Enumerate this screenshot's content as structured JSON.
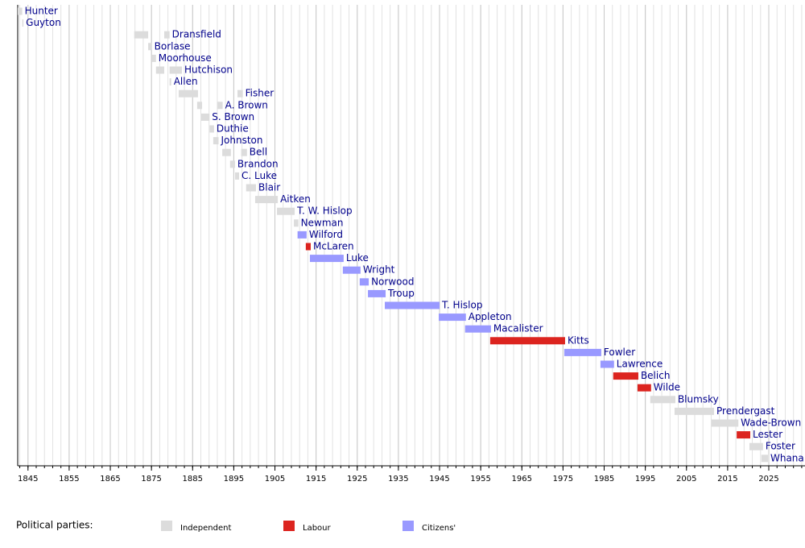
{
  "chart_data": {
    "type": "timeline",
    "xlim": [
      1842.5,
      2033.8
    ],
    "xticks": [
      1845,
      1855,
      1865,
      1875,
      1885,
      1895,
      1905,
      1915,
      1925,
      1935,
      1945,
      1955,
      1965,
      1975,
      1985,
      1995,
      2005,
      2015,
      2025
    ],
    "minor_xticks": [
      1843,
      1845,
      1847,
      1849,
      1851,
      1853,
      1855,
      1857,
      1859,
      1861,
      1863,
      1865,
      1867,
      1869,
      1871,
      1873,
      1875,
      1877,
      1879,
      1881,
      1883,
      1885,
      1887,
      1889,
      1891,
      1893,
      1895,
      1897,
      1899,
      1901,
      1903,
      1905,
      1907,
      1909,
      1911,
      1913,
      1915,
      1917,
      1919,
      1921,
      1923,
      1925,
      1927,
      1929,
      1931,
      1933,
      1935,
      1937,
      1939,
      1941,
      1943,
      1945,
      1947,
      1949,
      1951,
      1953,
      1955,
      1957,
      1959,
      1961,
      1963,
      1965,
      1967,
      1969,
      1971,
      1973,
      1975,
      1977,
      1979,
      1981,
      1983,
      1985,
      1987,
      1989,
      1991,
      1993,
      1995,
      1997,
      1999,
      2001,
      2003,
      2005,
      2007,
      2009,
      2011,
      2013,
      2015,
      2017,
      2019,
      2021,
      2023,
      2025,
      2027,
      2029,
      2031,
      2033
    ],
    "grid": true,
    "legend_title": "Political parties:",
    "parties": [
      {
        "name": "Independent",
        "color": "#dcdcdc"
      },
      {
        "name": "Labour",
        "color": "#dc241f"
      },
      {
        "name": "Citizens'",
        "color": "#9999ff"
      }
    ],
    "rows": [
      {
        "name": "Hunter",
        "party": "Independent",
        "terms": [
          [
            1842.5,
            1843.6
          ]
        ]
      },
      {
        "name": "Guyton",
        "party": "Independent",
        "terms": [
          [
            1843.6,
            1843.9
          ]
        ]
      },
      {
        "name": "Dransfield",
        "party": "Independent",
        "terms": [
          [
            1870.8,
            1874.2
          ],
          [
            1878.1,
            1879.4
          ]
        ]
      },
      {
        "name": "Borlase",
        "party": "Independent",
        "terms": [
          [
            1874.2,
            1875.1
          ]
        ]
      },
      {
        "name": "Moorhouse",
        "party": "Independent",
        "terms": [
          [
            1875.1,
            1876.1
          ]
        ]
      },
      {
        "name": "Hutchison",
        "party": "Independent",
        "terms": [
          [
            1876.1,
            1878.1
          ],
          [
            1879.4,
            1882.4
          ]
        ]
      },
      {
        "name": "Allen",
        "party": "Independent",
        "terms": [
          [
            1879.4,
            1879.8
          ]
        ]
      },
      {
        "name": "Fisher",
        "party": "Independent",
        "terms": [
          [
            1881.6,
            1886.3
          ],
          [
            1895.9,
            1897.2
          ]
        ]
      },
      {
        "name": "A. Brown",
        "party": "Independent",
        "terms": [
          [
            1886.1,
            1887.3
          ],
          [
            1891.0,
            1892.3
          ]
        ]
      },
      {
        "name": "S. Brown",
        "party": "Independent",
        "terms": [
          [
            1887.1,
            1889.1
          ]
        ]
      },
      {
        "name": "Duthie",
        "party": "Independent",
        "terms": [
          [
            1889.1,
            1890.2
          ]
        ]
      },
      {
        "name": "Johnston",
        "party": "Independent",
        "terms": [
          [
            1890.0,
            1891.3
          ]
        ]
      },
      {
        "name": "Bell",
        "party": "Independent",
        "terms": [
          [
            1892.2,
            1894.3
          ],
          [
            1896.8,
            1898.2
          ]
        ]
      },
      {
        "name": "Brandon",
        "party": "Independent",
        "terms": [
          [
            1894.1,
            1895.3
          ]
        ]
      },
      {
        "name": "C. Luke",
        "party": "Independent",
        "terms": [
          [
            1895.3,
            1896.3
          ]
        ]
      },
      {
        "name": "Blair",
        "party": "Independent",
        "terms": [
          [
            1898.0,
            1900.4
          ]
        ]
      },
      {
        "name": "Aitken",
        "party": "Independent",
        "terms": [
          [
            1900.2,
            1905.7
          ]
        ]
      },
      {
        "name": "T. W. Hislop",
        "party": "Independent",
        "terms": [
          [
            1905.5,
            1909.8
          ]
        ]
      },
      {
        "name": "Newman",
        "party": "Independent",
        "terms": [
          [
            1909.6,
            1910.7
          ]
        ]
      },
      {
        "name": "Wilford",
        "party": "Citizens'",
        "terms": [
          [
            1910.5,
            1912.7
          ]
        ]
      },
      {
        "name": "McLaren",
        "party": "Labour",
        "terms": [
          [
            1912.5,
            1913.7
          ]
        ]
      },
      {
        "name": "Luke",
        "party": "Citizens'",
        "terms": [
          [
            1913.5,
            1921.7
          ]
        ]
      },
      {
        "name": "Wright",
        "party": "Citizens'",
        "terms": [
          [
            1921.5,
            1925.8
          ]
        ]
      },
      {
        "name": "Norwood",
        "party": "Citizens'",
        "terms": [
          [
            1925.6,
            1927.8
          ]
        ]
      },
      {
        "name": "Troup",
        "party": "Citizens'",
        "terms": [
          [
            1927.6,
            1931.9
          ]
        ]
      },
      {
        "name": "T. Hislop",
        "party": "Citizens'",
        "terms": [
          [
            1931.7,
            1945.0
          ]
        ]
      },
      {
        "name": "Appleton",
        "party": "Citizens'",
        "terms": [
          [
            1944.8,
            1951.4
          ]
        ]
      },
      {
        "name": "Macalister",
        "party": "Citizens'",
        "terms": [
          [
            1951.2,
            1957.5
          ]
        ]
      },
      {
        "name": "Kitts",
        "party": "Labour",
        "terms": [
          [
            1957.3,
            1975.5
          ]
        ]
      },
      {
        "name": "Fowler",
        "party": "Citizens'",
        "terms": [
          [
            1975.3,
            1984.3
          ]
        ]
      },
      {
        "name": "Lawrence",
        "party": "Citizens'",
        "terms": [
          [
            1984.1,
            1987.4
          ]
        ]
      },
      {
        "name": "Belich",
        "party": "Labour",
        "terms": [
          [
            1987.2,
            1993.3
          ]
        ]
      },
      {
        "name": "Wilde",
        "party": "Labour",
        "terms": [
          [
            1993.1,
            1996.4
          ]
        ]
      },
      {
        "name": "Blumsky",
        "party": "Independent",
        "terms": [
          [
            1996.2,
            2002.3
          ]
        ]
      },
      {
        "name": "Prendergast",
        "party": "Independent",
        "terms": [
          [
            2002.1,
            2011.7
          ]
        ]
      },
      {
        "name": "Wade-Brown",
        "party": "Independent",
        "terms": [
          [
            2011.1,
            2017.6
          ]
        ]
      },
      {
        "name": "Lester",
        "party": "Labour",
        "terms": [
          [
            2017.2,
            2020.5
          ]
        ]
      },
      {
        "name": "Foster",
        "party": "Independent",
        "terms": [
          [
            2020.3,
            2023.6
          ]
        ]
      },
      {
        "name": "Whana",
        "party": "Independent",
        "terms": [
          [
            2023.2,
            2024.8
          ]
        ]
      }
    ]
  }
}
